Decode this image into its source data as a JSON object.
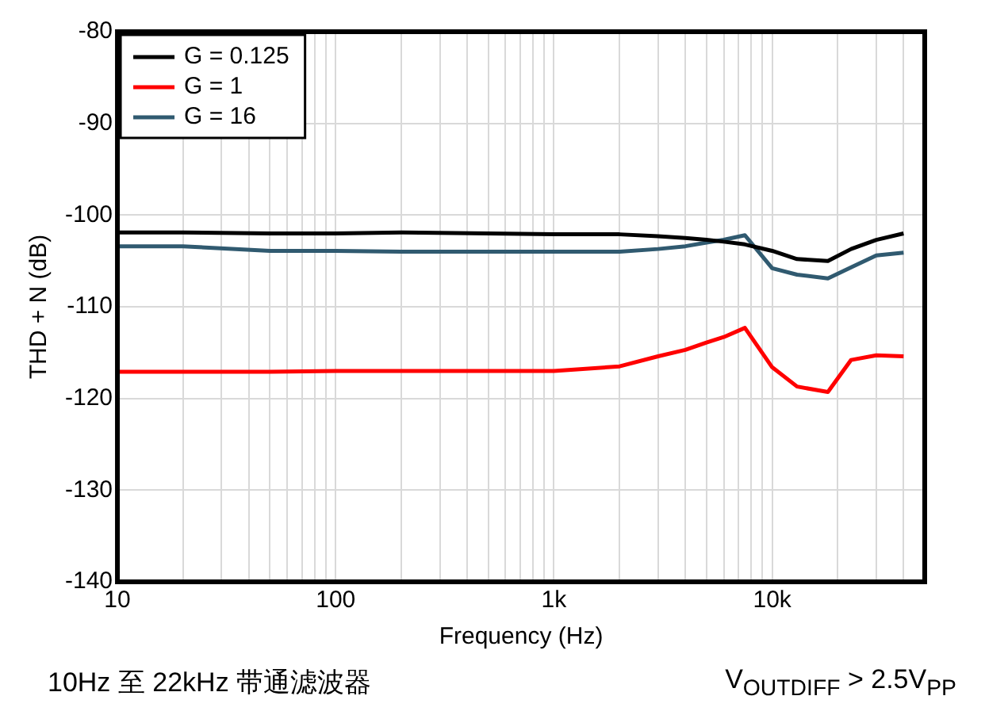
{
  "chart_data": {
    "type": "line",
    "xlabel": "Frequency (Hz)",
    "ylabel": "THD + N (dB)",
    "x": [
      10,
      20,
      50,
      100,
      200,
      500,
      1000,
      2000,
      3000,
      4000,
      5000,
      6000,
      7500,
      10000,
      13000,
      18000,
      23000,
      30000,
      40000
    ],
    "series": [
      {
        "name": "G = 0.125",
        "color": "#000000",
        "values": [
          -101.9,
          -101.9,
          -102.0,
          -102.0,
          -101.9,
          -102.0,
          -102.1,
          -102.1,
          -102.3,
          -102.5,
          -102.7,
          -102.9,
          -103.2,
          -103.9,
          -104.8,
          -105.0,
          -103.7,
          -102.7,
          -102.0
        ]
      },
      {
        "name": "G = 1",
        "color": "#ff0000",
        "values": [
          -117.1,
          -117.1,
          -117.1,
          -117.0,
          -117.0,
          -117.0,
          -117.0,
          -116.5,
          -115.4,
          -114.7,
          -113.9,
          -113.3,
          -112.3,
          -116.6,
          -118.7,
          -119.3,
          -115.8,
          -115.3,
          -115.4
        ]
      },
      {
        "name": "G = 16",
        "color": "#305a70",
        "values": [
          -103.4,
          -103.4,
          -103.9,
          -103.9,
          -104.0,
          -104.0,
          -104.0,
          -104.0,
          -103.7,
          -103.4,
          -103.0,
          -102.7,
          -102.2,
          -105.8,
          -106.5,
          -106.9,
          -105.7,
          -104.4,
          -104.1
        ]
      }
    ],
    "log": "x",
    "xlim": [
      10,
      50000
    ],
    "xticks": [
      10,
      {
        "value": 20,
        "label": null
      },
      {
        "value": 30,
        "label": null
      },
      {
        "value": 40,
        "label": null
      },
      {
        "value": 50,
        "label": null
      },
      {
        "value": 60,
        "label": null
      },
      {
        "value": 70,
        "label": null
      },
      {
        "value": 80,
        "label": null
      },
      {
        "value": 90,
        "label": null
      },
      100,
      {
        "value": 200,
        "label": null
      },
      {
        "value": 300,
        "label": null
      },
      {
        "value": 400,
        "label": null
      },
      {
        "value": 500,
        "label": null
      },
      {
        "value": 600,
        "label": null
      },
      {
        "value": 700,
        "label": null
      },
      {
        "value": 800,
        "label": null
      },
      {
        "value": 900,
        "label": null
      },
      {
        "value": 1000,
        "label": "1k"
      },
      {
        "value": 2000,
        "label": null
      },
      {
        "value": 3000,
        "label": null
      },
      {
        "value": 4000,
        "label": null
      },
      {
        "value": 5000,
        "label": null
      },
      {
        "value": 6000,
        "label": null
      },
      {
        "value": 7000,
        "label": null
      },
      {
        "value": 8000,
        "label": null
      },
      {
        "value": 9000,
        "label": null
      },
      {
        "value": 10000,
        "label": "10k"
      },
      {
        "value": 20000,
        "label": null
      },
      {
        "value": 30000,
        "label": null
      },
      {
        "value": 40000,
        "label": null
      },
      {
        "value": 50000,
        "label": null
      }
    ],
    "ylim": [
      -140,
      -80
    ],
    "yticks": [
      -140,
      -130,
      -120,
      -110,
      -100,
      -90,
      -80
    ],
    "grid": true,
    "legend": "top left",
    "marker": "none",
    "line_style": "solid",
    "annotations": [
      "10Hz 至 22kHz 带通滤波器",
      "V$_{OUTDIFF}$ > 2.5V$_{PP}$"
    ]
  }
}
